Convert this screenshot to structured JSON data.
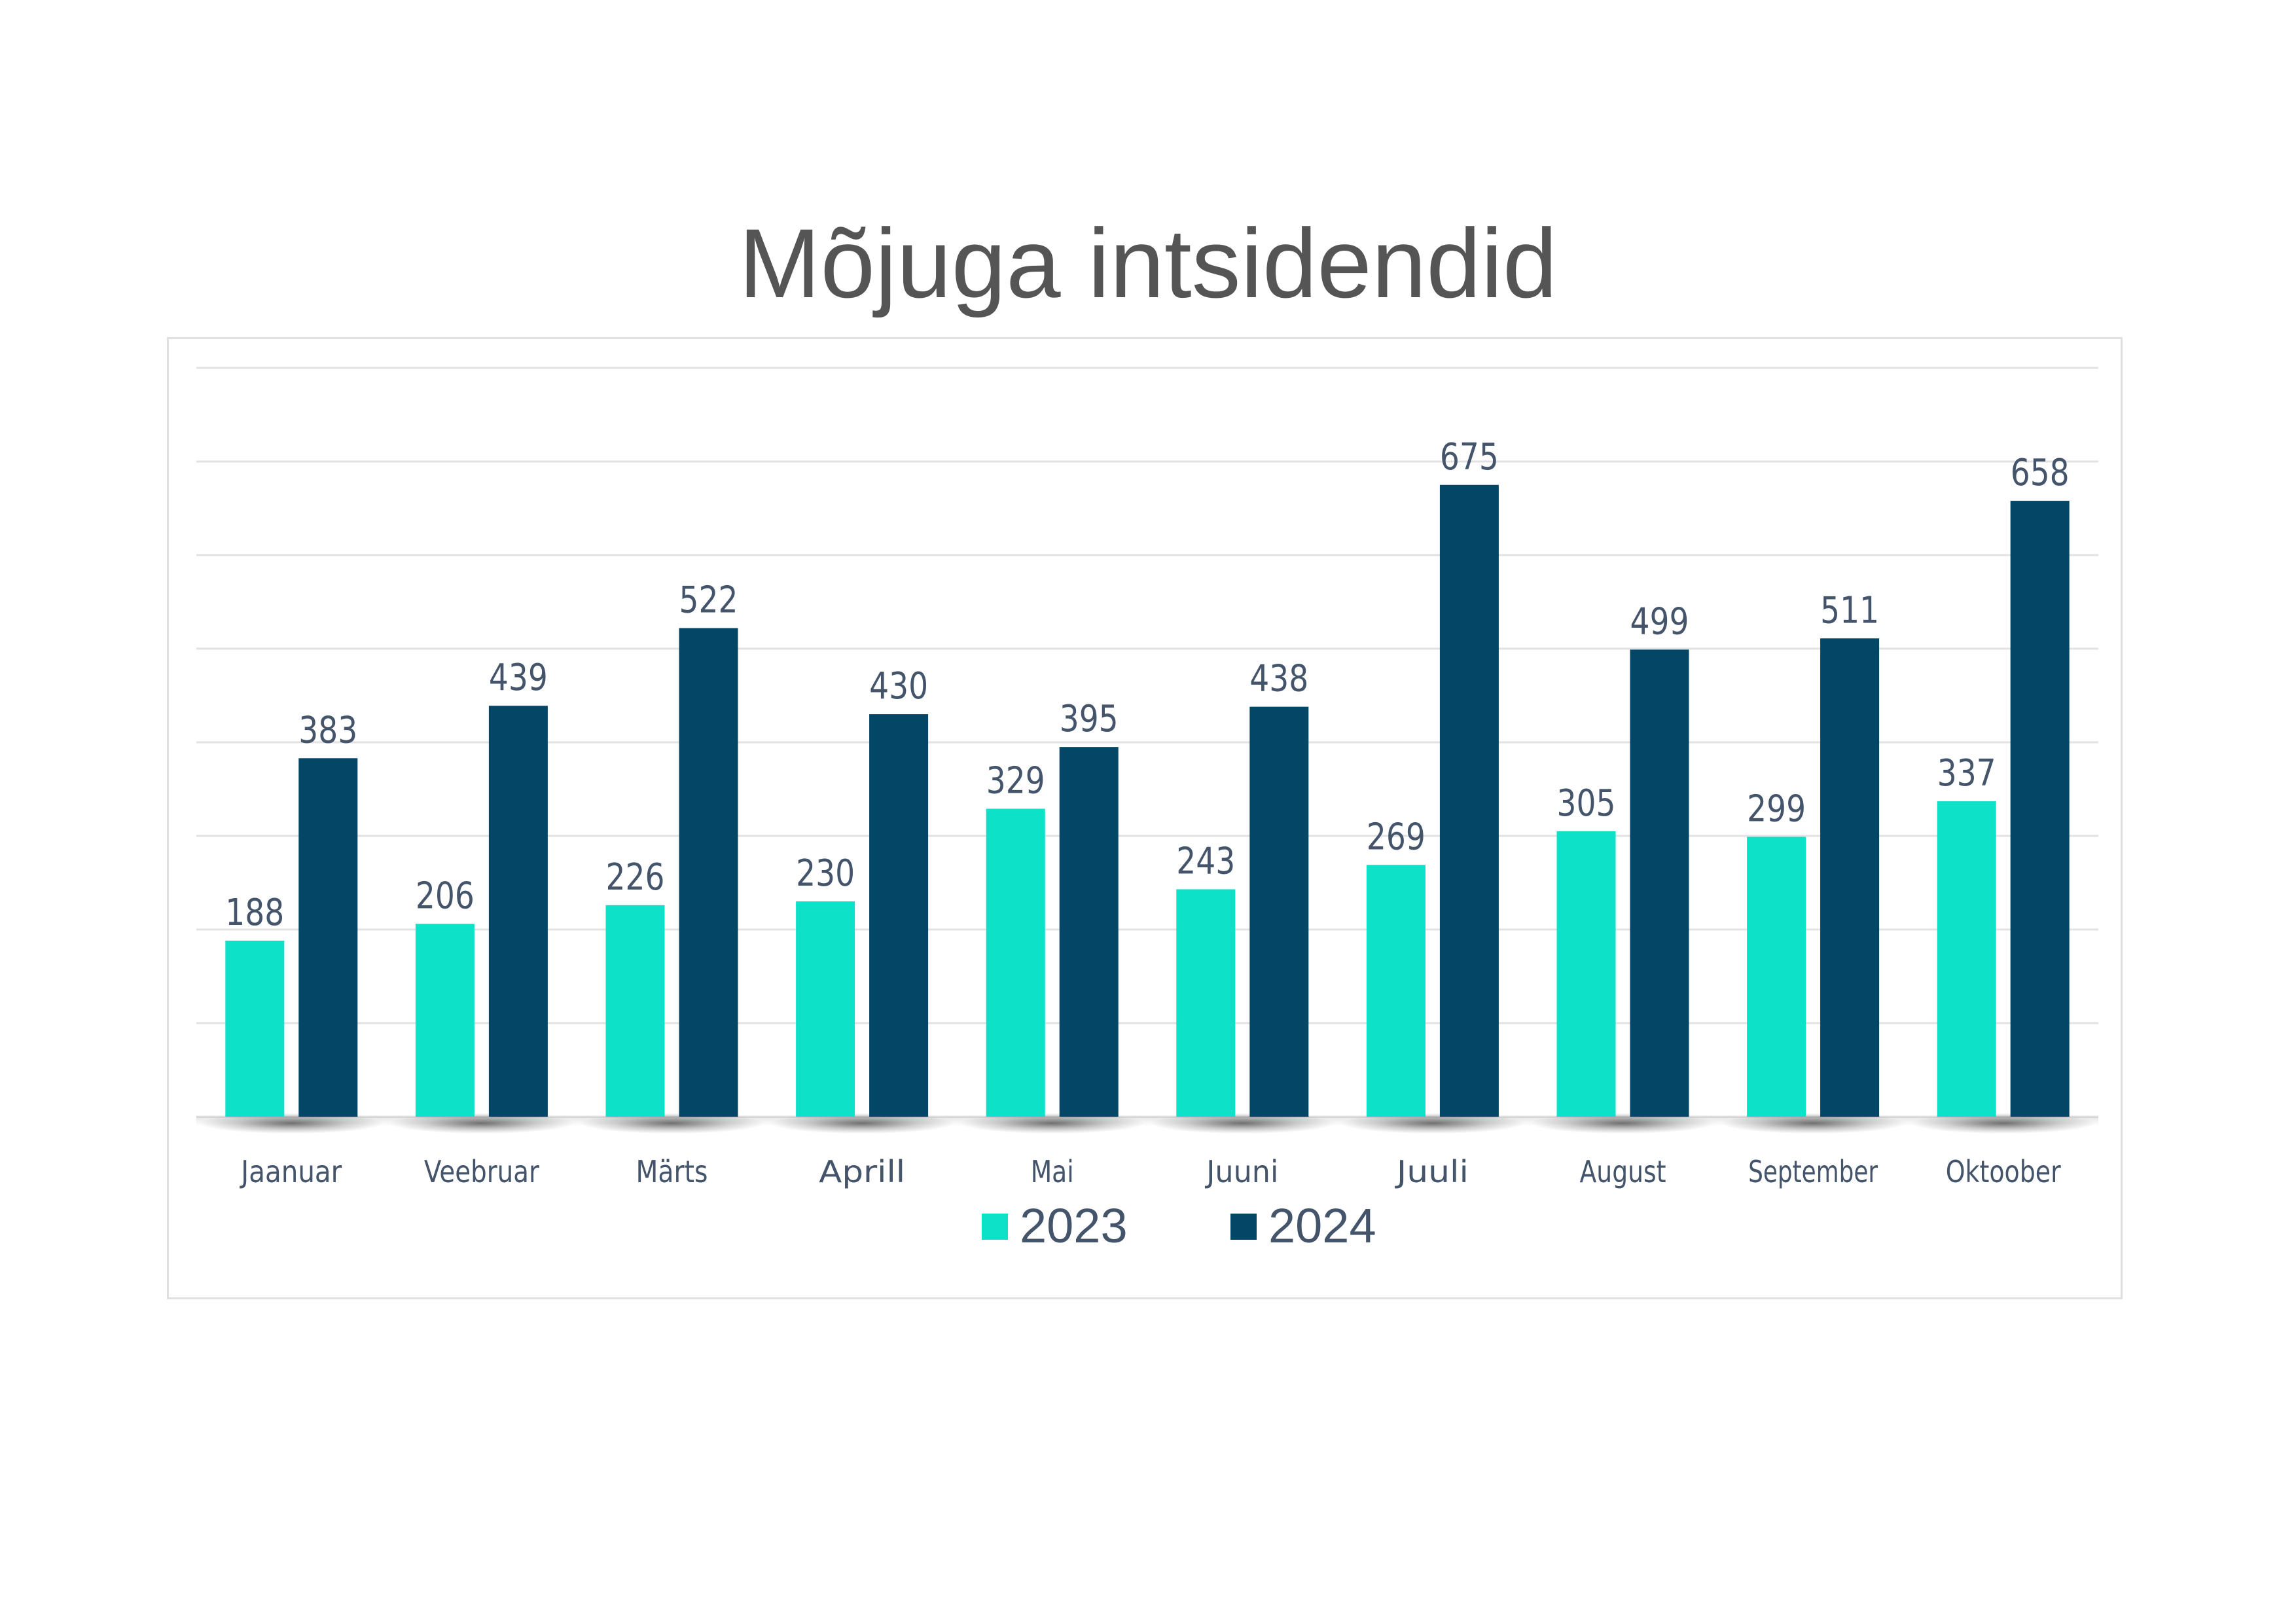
{
  "chart_data": {
    "type": "bar",
    "title": "Mõjuga intsidendid",
    "xlabel": "",
    "ylabel": "",
    "ylim": [
      0,
      800
    ],
    "grid": true,
    "legend_position": "bottom",
    "categories": [
      "Jaanuar",
      "Veebruar",
      "Märts",
      "Aprill",
      "Mai",
      "Juuni",
      "Juuli",
      "August",
      "September",
      "Oktoober"
    ],
    "series": [
      {
        "name": "2023",
        "color": "#0de2c8",
        "values": [
          188,
          206,
          226,
          230,
          329,
          243,
          269,
          305,
          299,
          337
        ]
      },
      {
        "name": "2024",
        "color": "#034666",
        "values": [
          383,
          439,
          522,
          430,
          395,
          438,
          675,
          499,
          511,
          658
        ]
      }
    ]
  }
}
